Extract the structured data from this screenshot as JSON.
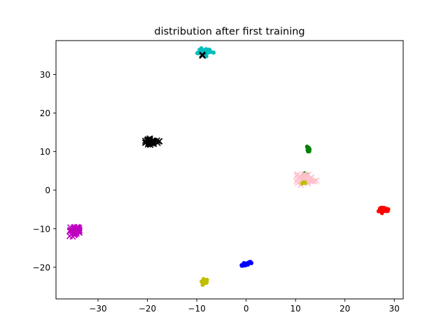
{
  "chart_data": {
    "type": "scatter",
    "title": "distribution after first training",
    "xlabel": "",
    "ylabel": "",
    "xlim": [
      -38.5,
      31.8
    ],
    "ylim": [
      -28.2,
      38.8
    ],
    "xticks": [
      -30,
      -20,
      -10,
      0,
      10,
      20,
      30
    ],
    "yticks": [
      -20,
      -10,
      0,
      10,
      20,
      30
    ],
    "xtick_labels": [
      "−30",
      "−20",
      "−10",
      "0",
      "10",
      "20",
      "30"
    ],
    "ytick_labels": [
      "−20",
      "−10",
      "0",
      "10",
      "20",
      "30"
    ],
    "grid": false,
    "legend": "none",
    "clusters": [
      {
        "color": "#00bfbf",
        "marker": "circle",
        "cx": -8.3,
        "cy": 36.0,
        "sx": 0.6,
        "sy": 0.5,
        "n": 34
      },
      {
        "color": "#000000",
        "marker": "x",
        "cx": -8.8,
        "cy": 35.0,
        "sx": 0.2,
        "sy": 0.2,
        "n": 3
      },
      {
        "color": "#000000",
        "marker": "x",
        "cx": -19.3,
        "cy": 12.5,
        "sx": 0.7,
        "sy": 0.4,
        "n": 40
      },
      {
        "color": "#008000",
        "marker": "circle",
        "cx": 12.6,
        "cy": 10.8,
        "sx": 0.2,
        "sy": 0.4,
        "n": 14
      },
      {
        "color": "#008000",
        "marker": "circle",
        "cx": 12.0,
        "cy": 4.3,
        "sx": 0.2,
        "sy": 0.4,
        "n": 8
      },
      {
        "color": "#ffc0cb",
        "marker": "x",
        "cx": 12.0,
        "cy": 3.0,
        "sx": 0.8,
        "sy": 0.6,
        "n": 44
      },
      {
        "color": "#bfbf00",
        "marker": "circle",
        "cx": 11.8,
        "cy": 1.8,
        "sx": 0.3,
        "sy": 0.4,
        "n": 5
      },
      {
        "color": "#ff0000",
        "marker": "circle",
        "cx": 27.8,
        "cy": -5.0,
        "sx": 0.5,
        "sy": 0.3,
        "n": 32
      },
      {
        "color": "#bfbf00",
        "marker": "circle",
        "cx": -33.6,
        "cy": -10.8,
        "sx": 0.3,
        "sy": 0.3,
        "n": 3
      },
      {
        "color": "#bf00bf",
        "marker": "x",
        "cx": -34.6,
        "cy": -10.5,
        "sx": 0.6,
        "sy": 0.5,
        "n": 44
      },
      {
        "color": "#bfbf00",
        "marker": "circle",
        "cx": -8.3,
        "cy": -23.9,
        "sx": 0.3,
        "sy": 0.4,
        "n": 14
      },
      {
        "color": "#0000ff",
        "marker": "line-cluster",
        "from": [
          -1.0,
          -19.6
        ],
        "to": [
          0.9,
          -18.7
        ],
        "n": 30
      }
    ]
  }
}
